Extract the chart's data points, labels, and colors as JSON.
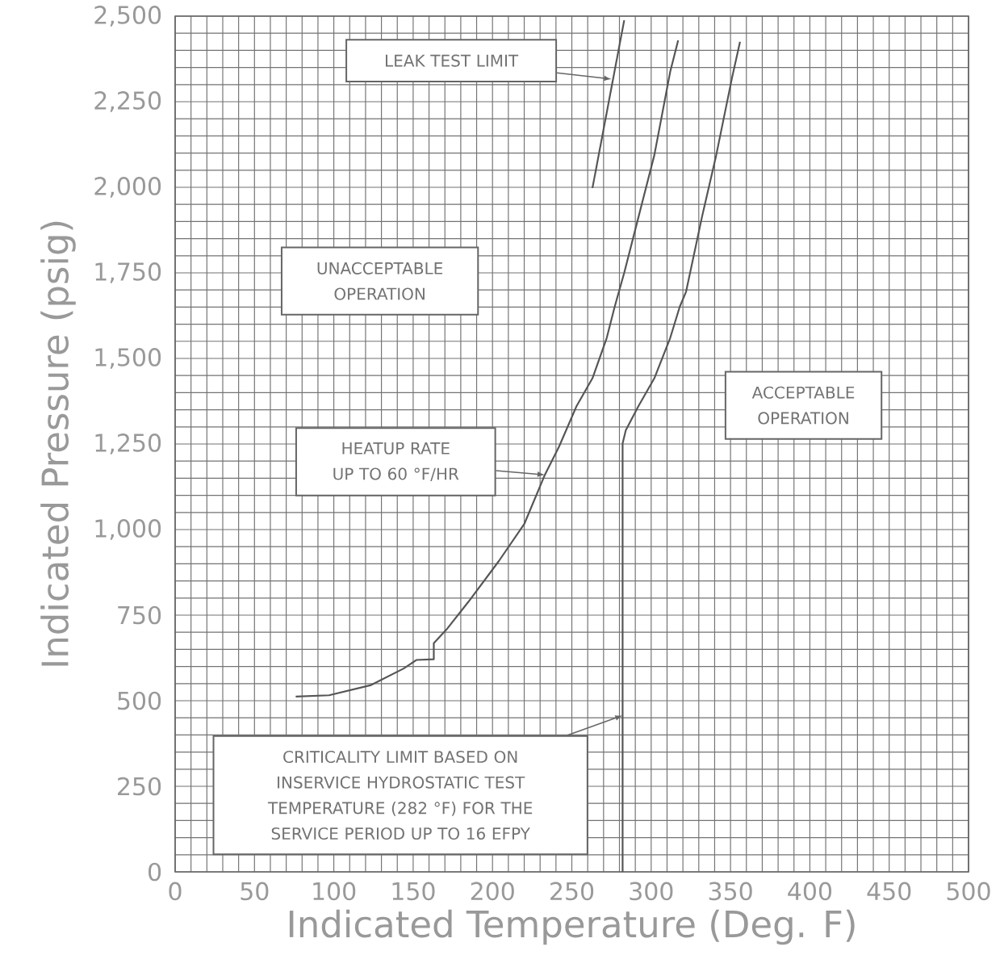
{
  "chart_data": {
    "type": "line",
    "xlabel": "Indicated Temperature (Deg. F)",
    "ylabel": "Indicated Pressure (psig)",
    "xlim": [
      0,
      500
    ],
    "ylim": [
      0,
      2500
    ],
    "xticks": [
      0,
      50,
      100,
      150,
      200,
      250,
      300,
      350,
      400,
      450,
      500
    ],
    "yticks": [
      0,
      250,
      500,
      750,
      {
        "value": 1000,
        "label": "1,000"
      },
      {
        "value": 1250,
        "label": "1,250"
      },
      {
        "value": 1500,
        "label": "1,500"
      },
      {
        "value": 1750,
        "label": "1,750"
      },
      {
        "value": 2000,
        "label": "2,000"
      },
      {
        "value": 2250,
        "label": "2,250"
      },
      {
        "value": 2500,
        "label": "2,500"
      }
    ],
    "grid": true,
    "series": [
      {
        "color": "#555555",
        "x": [
          76,
          97,
          123,
          144,
          152,
          163,
          163,
          171,
          185,
          204,
          220,
          233,
          242,
          253,
          263,
          272,
          277,
          283,
          292,
          302,
          312,
          317
        ],
        "values": [
          512,
          516,
          545,
          594,
          619,
          621,
          668,
          708,
          790,
          908,
          1016,
          1160,
          1243,
          1361,
          1442,
          1560,
          1651,
          1750,
          1913,
          2094,
          2338,
          2429
        ]
      },
      {
        "color": "#555555",
        "x": [
          282,
          282,
          284,
          292,
          302,
          312,
          318,
          322,
          332,
          341,
          351,
          356
        ],
        "values": [
          0,
          1252,
          1290,
          1361,
          1442,
          1560,
          1651,
          1695,
          1913,
          2094,
          2321,
          2425
        ]
      },
      {
        "color": "#555555",
        "x": [
          263,
          283
        ],
        "values": [
          1998,
          2488
        ]
      }
    ],
    "annotations": [
      "LEAK TEST LIMIT",
      "UNACCEPTABLE OPERATION",
      "HEATUP RATE UP TO 60 °F/HR",
      "ACCEPTABLE OPERATION",
      "CRITICALITY LIMIT BASED ON INSERVICE HYDROSTATIC TEST TEMPERATURE (282 °F) FOR THE SERVICE PERIOD UP TO 16 EFPY"
    ]
  }
}
